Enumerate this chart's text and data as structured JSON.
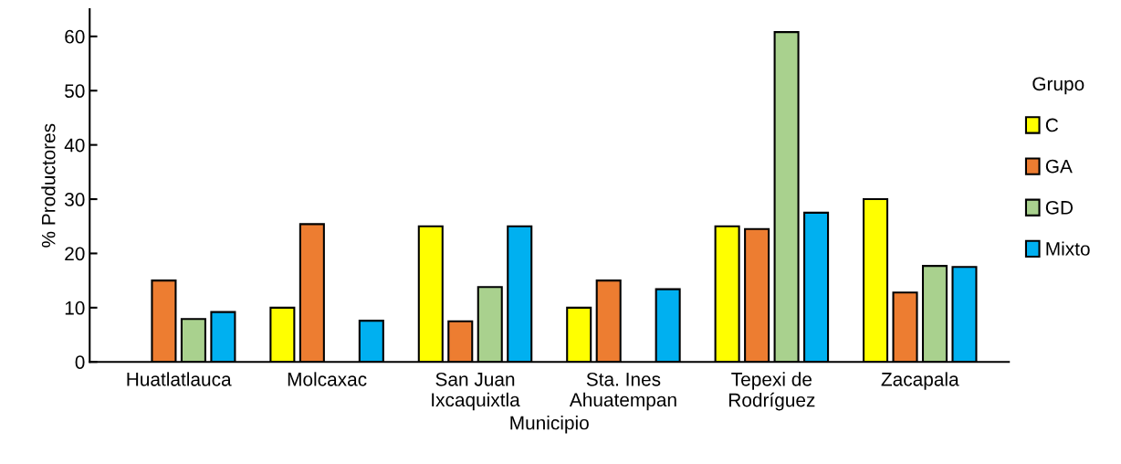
{
  "chart_data": {
    "type": "bar",
    "xlabel": "Municipio",
    "ylabel": "% Productores",
    "legend_title": "Grupo",
    "categories": [
      "Huatlatlauca",
      "Molcaxac",
      "San Juan\nIxcaquixtla",
      "Sta. Ines\nAhuatempan",
      "Tepexi de\nRodríguez",
      "Zacapala"
    ],
    "series": [
      {
        "name": "C",
        "color": "#ffff00",
        "values": [
          null,
          10,
          25,
          10,
          25,
          30
        ]
      },
      {
        "name": "GA",
        "color": "#ed7d31",
        "values": [
          15,
          25.4,
          7.5,
          15,
          24.5,
          12.8
        ]
      },
      {
        "name": "GD",
        "color": "#a9d18e",
        "values": [
          7.9,
          null,
          13.8,
          null,
          60.8,
          17.7
        ]
      },
      {
        "name": "Mixto",
        "color": "#00b0f0",
        "values": [
          9.2,
          7.6,
          25,
          13.4,
          27.5,
          17.5
        ]
      }
    ],
    "ylim": [
      0,
      65
    ],
    "yticks": [
      0,
      10,
      20,
      30,
      40,
      50,
      60
    ],
    "grid": false,
    "legend": "right"
  }
}
